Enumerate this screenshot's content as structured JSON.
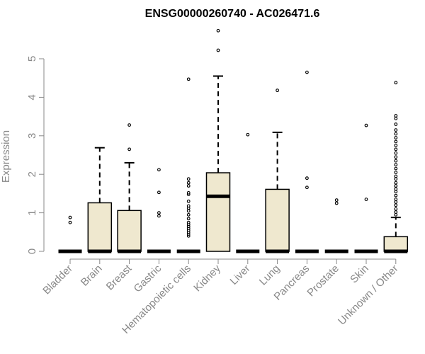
{
  "colors": {
    "box_fill": "#efe8cf",
    "box_stroke": "#000000",
    "axis": "#888888",
    "label": "#888888"
  },
  "chart_data": {
    "type": "boxplot",
    "title": "ENSG00000260740 - AC026471.6",
    "ylabel": "Expression",
    "xlabel": "",
    "ylim": [
      0,
      5.9
    ],
    "yticks": [
      0,
      1,
      2,
      3,
      4,
      5
    ],
    "grid": false,
    "categories": [
      "Bladder",
      "Brain",
      "Breast",
      "Gastric",
      "Hematopoietic cells",
      "Kidney",
      "Liver",
      "Lung",
      "Pancreas",
      "Prostate",
      "Skin",
      "Unknown / Other"
    ],
    "boxes": [
      {
        "q1": 0,
        "median": 0,
        "q3": 0,
        "whisker_low": 0,
        "whisker_high": 0,
        "outliers": [
          0.75,
          0.88
        ]
      },
      {
        "q1": 0,
        "median": 0,
        "q3": 1.26,
        "whisker_low": 0,
        "whisker_high": 2.69,
        "outliers": []
      },
      {
        "q1": 0,
        "median": 0,
        "q3": 1.06,
        "whisker_low": 0,
        "whisker_high": 2.3,
        "outliers": [
          2.65,
          3.28
        ]
      },
      {
        "q1": 0,
        "median": 0,
        "q3": 0,
        "whisker_low": 0,
        "whisker_high": 0,
        "outliers": [
          0.92,
          1.0,
          1.53,
          2.12
        ]
      },
      {
        "q1": 0,
        "median": 0,
        "q3": 0,
        "whisker_low": 0,
        "whisker_high": 0,
        "outliers": [
          0.4,
          0.45,
          0.5,
          0.55,
          0.6,
          0.65,
          0.7,
          0.75,
          0.85,
          0.95,
          1.05,
          1.12,
          1.18,
          1.3,
          1.48,
          1.52,
          1.7,
          1.78,
          1.88,
          4.47
        ]
      },
      {
        "q1": 0,
        "median": 1.43,
        "q3": 2.04,
        "whisker_low": 0,
        "whisker_high": 4.55,
        "outliers": [
          5.22,
          5.73
        ]
      },
      {
        "q1": 0,
        "median": 0,
        "q3": 0,
        "whisker_low": 0,
        "whisker_high": 0,
        "outliers": [
          3.03
        ]
      },
      {
        "q1": 0,
        "median": 0,
        "q3": 1.61,
        "whisker_low": 0,
        "whisker_high": 3.09,
        "outliers": [
          4.18
        ]
      },
      {
        "q1": 0,
        "median": 0,
        "q3": 0,
        "whisker_low": 0,
        "whisker_high": 0,
        "outliers": [
          1.66,
          1.9,
          4.65
        ]
      },
      {
        "q1": 0,
        "median": 0,
        "q3": 0,
        "whisker_low": 0,
        "whisker_high": 0,
        "outliers": [
          1.25,
          1.33
        ]
      },
      {
        "q1": 0,
        "median": 0,
        "q3": 0,
        "whisker_low": 0,
        "whisker_high": 0,
        "outliers": [
          1.35,
          3.27
        ]
      },
      {
        "q1": 0,
        "median": 0,
        "q3": 0.38,
        "whisker_low": 0,
        "whisker_high": 0.88,
        "outliers": [
          0.95,
          1.02,
          1.1,
          1.2,
          1.28,
          1.35,
          1.45,
          1.55,
          1.62,
          1.7,
          1.78,
          1.88,
          1.95,
          2.05,
          2.15,
          2.25,
          2.35,
          2.45,
          2.55,
          2.65,
          2.75,
          2.85,
          2.95,
          3.05,
          3.15,
          3.3,
          3.45,
          3.52,
          4.38
        ]
      }
    ]
  }
}
